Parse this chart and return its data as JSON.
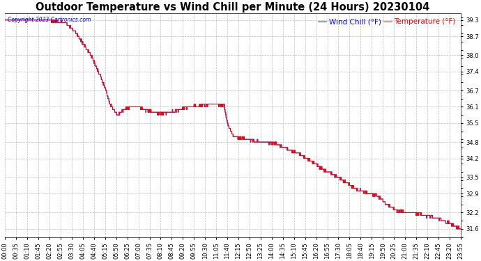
{
  "title": "Outdoor Temperature vs Wind Chill per Minute (24 Hours) 20230104",
  "copyright_text": "Copyright 2023 Cartronics.com",
  "legend_wind_chill": "Wind Chill (°F)",
  "legend_temperature": "Temperature (°F)",
  "wind_chill_color": "blue",
  "temperature_color": "red",
  "background_color": "#ffffff",
  "grid_color": "#bbbbbb",
  "ylim_min": 31.3,
  "ylim_max": 39.55,
  "yticks": [
    31.6,
    32.2,
    32.9,
    33.5,
    34.2,
    34.8,
    35.5,
    36.1,
    36.7,
    37.4,
    38.0,
    38.7,
    39.3
  ],
  "x_tick_interval_minutes": 35,
  "total_minutes": 1435,
  "title_fontsize": 10.5,
  "tick_fontsize": 6.0,
  "legend_fontsize": 7.5,
  "keypoints_min": [
    0,
    30,
    60,
    120,
    190,
    210,
    230,
    270,
    290,
    315,
    330,
    355,
    375,
    395,
    420,
    450,
    470,
    490,
    520,
    550,
    580,
    620,
    660,
    690,
    700,
    720,
    760,
    800,
    850,
    900,
    950,
    1000,
    1050,
    1100,
    1150,
    1170,
    1200,
    1230,
    1260,
    1290,
    1320,
    1360,
    1390,
    1410,
    1435
  ],
  "keypoints_temp": [
    39.3,
    39.3,
    39.3,
    39.3,
    39.2,
    39.0,
    38.7,
    38.0,
    37.5,
    36.8,
    36.2,
    35.8,
    36.0,
    36.1,
    36.1,
    35.95,
    35.9,
    35.85,
    35.9,
    36.0,
    36.1,
    36.15,
    36.2,
    36.15,
    35.5,
    35.0,
    34.9,
    34.82,
    34.75,
    34.5,
    34.2,
    33.8,
    33.5,
    33.1,
    32.9,
    32.85,
    32.5,
    32.3,
    32.2,
    32.2,
    32.1,
    32.0,
    31.85,
    31.75,
    31.6
  ]
}
